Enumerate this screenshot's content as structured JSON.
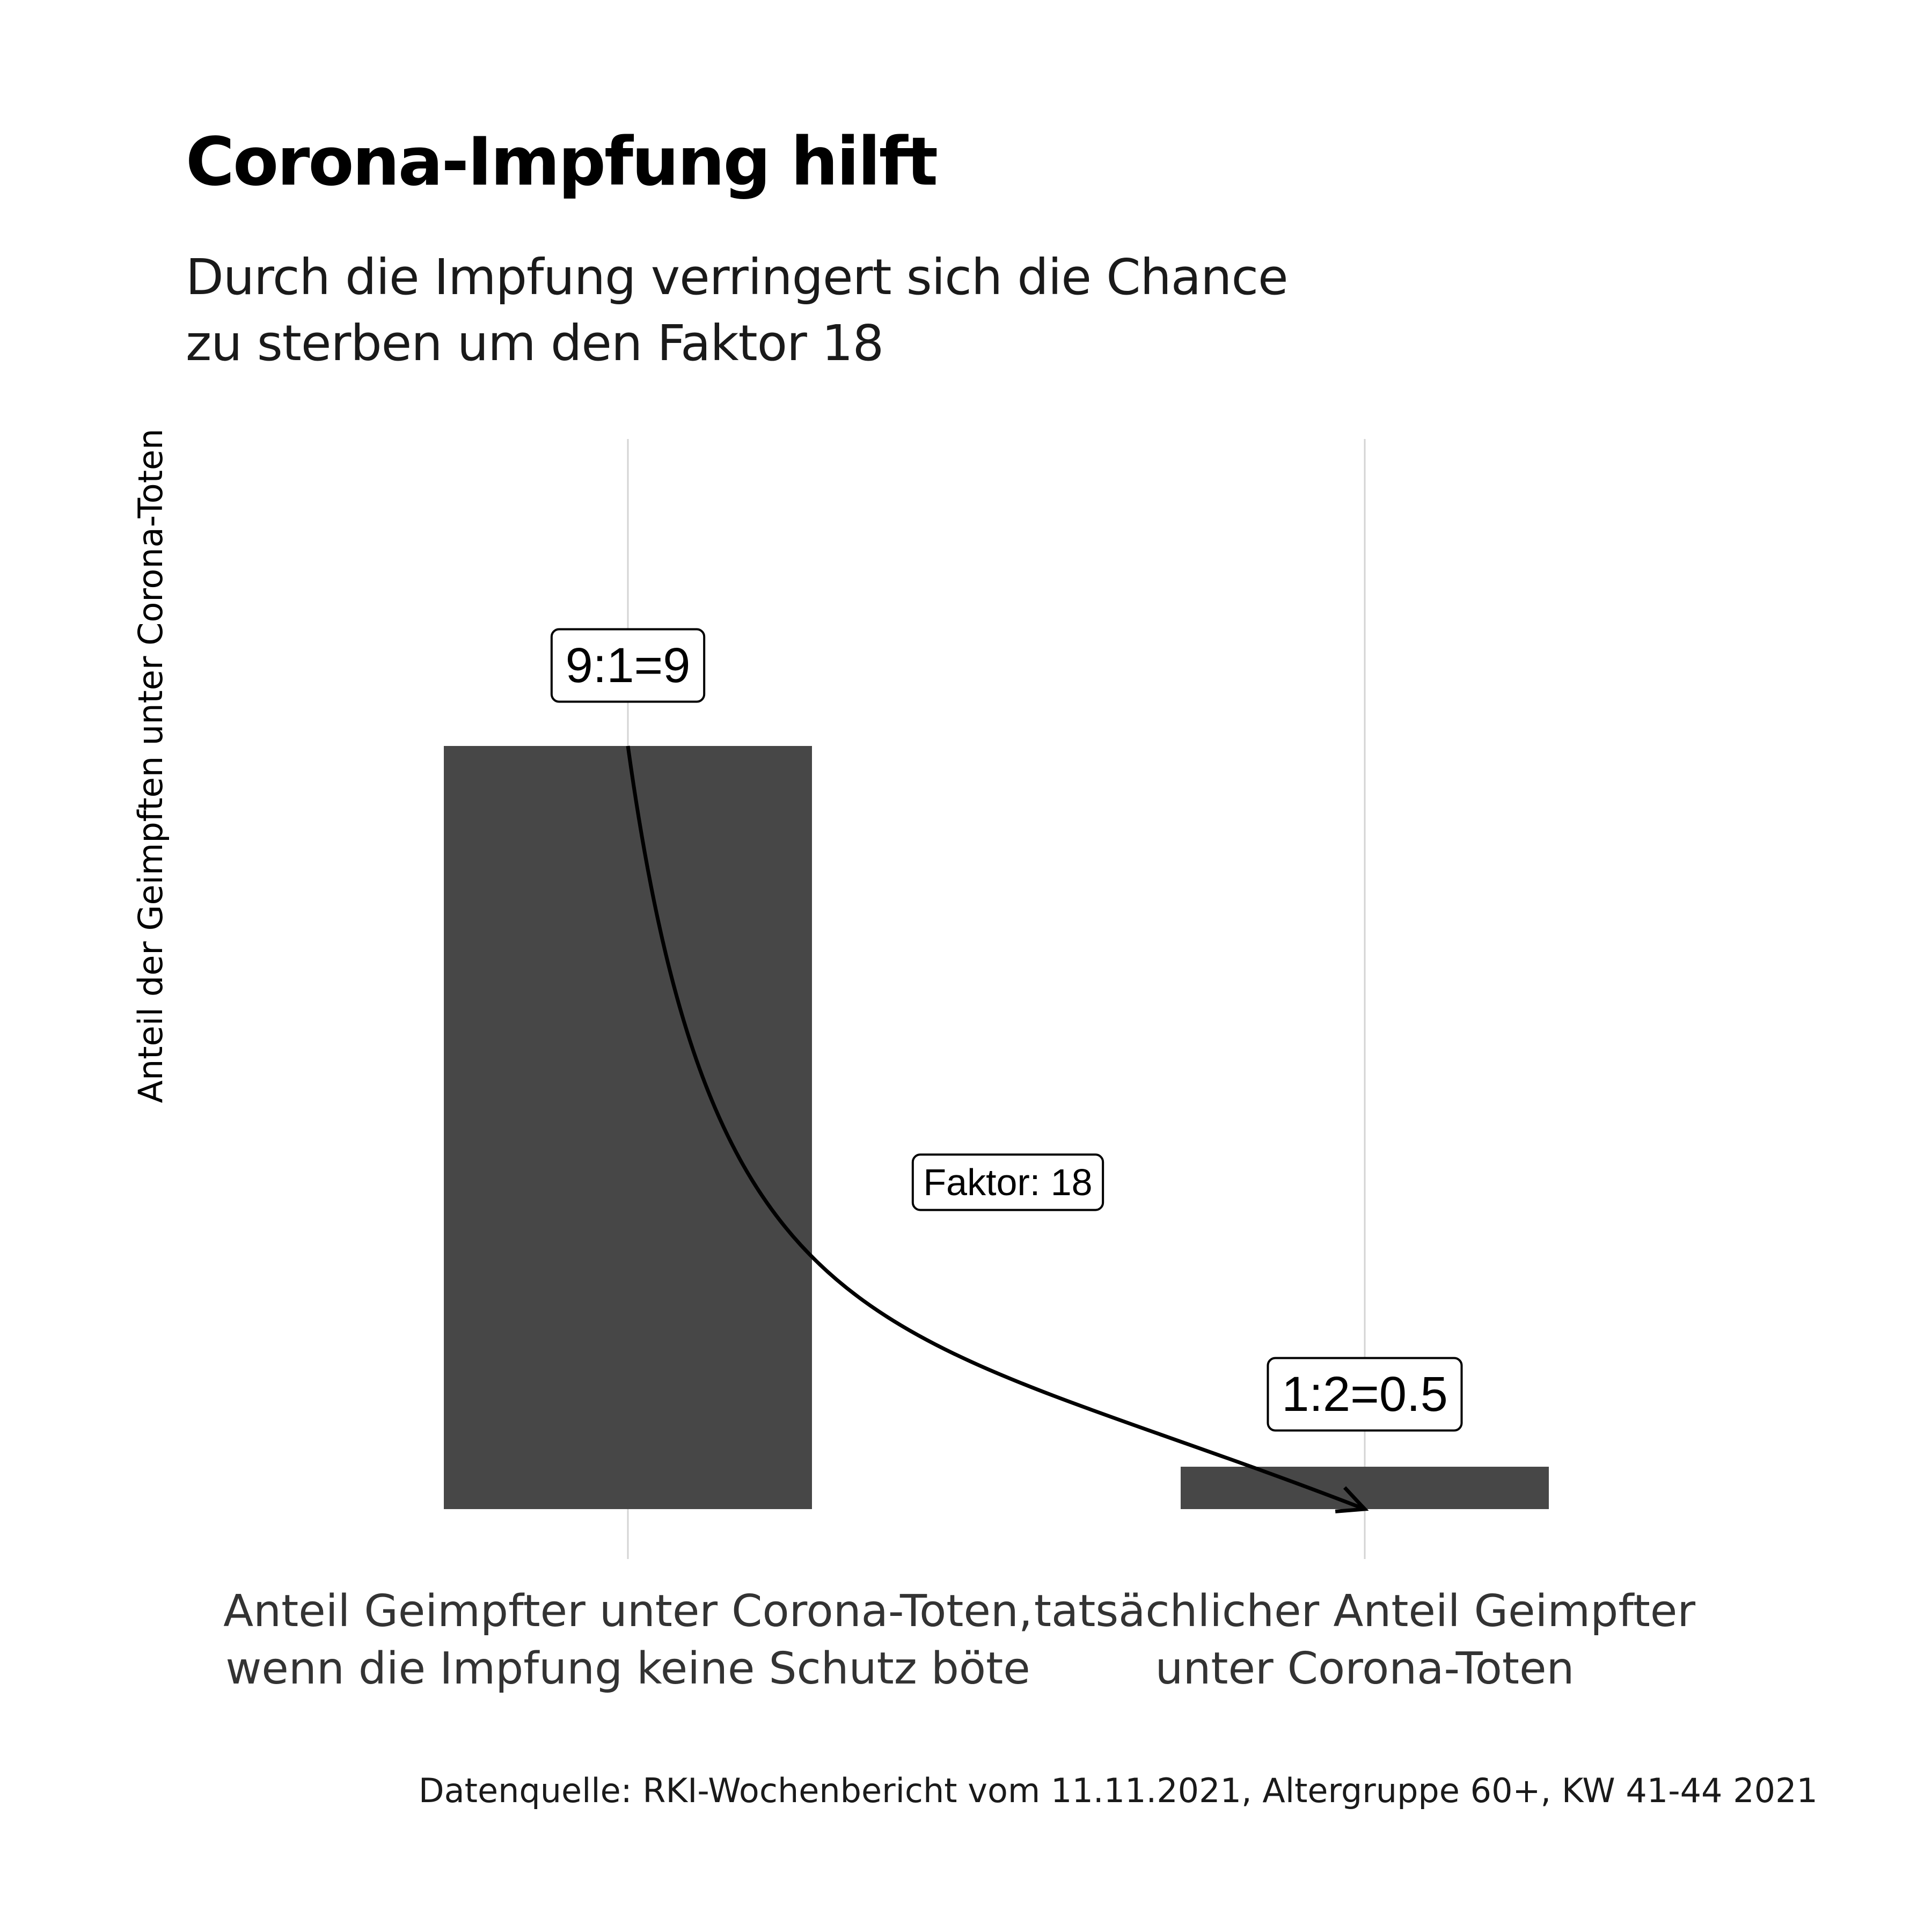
{
  "title": "Corona-Impfung hilft",
  "subtitle": [
    "Durch die Impfung verringert sich die Chance",
    "zu sterben um den Faktor 18"
  ],
  "caption": "Datenquelle: RKI-Wochenbericht vom 11.11.2021, Altergruppe 60+, KW 41-44 2021",
  "chart_data": {
    "type": "bar",
    "ylabel": "Anteil der Geimpften unter Corona-Toten",
    "categories": [
      [
        "Anteil Geimpfter unter Corona-Toten,",
        "wenn die Impfung keine Schutz böte"
      ],
      [
        "tatsächlicher Anteil Geimpfter",
        "unter Corona-Toten"
      ]
    ],
    "values": [
      9,
      0.5
    ],
    "value_labels": [
      "9:1=9",
      "1:2=0.5"
    ],
    "ylim": [
      0,
      10
    ],
    "y_axis_ticks_shown": false,
    "grid": "vertical major at categories",
    "bar_color": "#474747",
    "arrow_annotation": {
      "from_category": 0,
      "to_category": 1,
      "label": "Faktor: 18"
    }
  }
}
